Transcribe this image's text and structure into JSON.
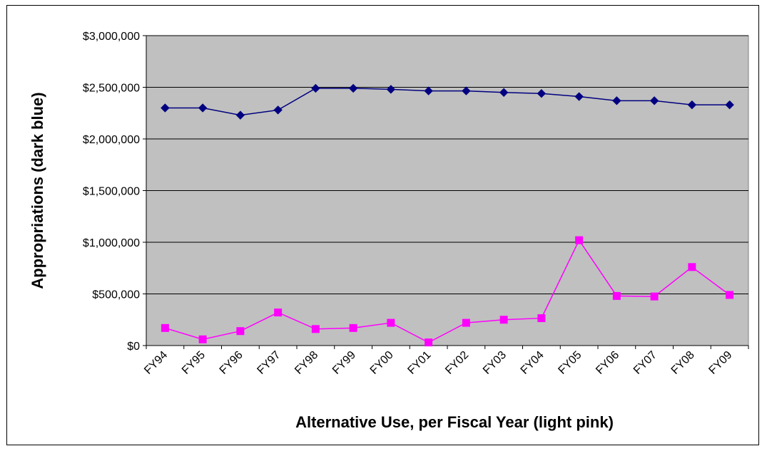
{
  "chart_data": {
    "type": "line",
    "title": "",
    "xlabel": "Alternative Use, per Fiscal Year (light pink)",
    "ylabel": "Appropriations (dark blue)",
    "ylim": [
      0,
      3000000
    ],
    "ytick_values": [
      0,
      500000,
      1000000,
      1500000,
      2000000,
      2500000,
      3000000
    ],
    "ytick_labels": [
      "$0",
      "$500,000",
      "$1,000,000",
      "$1,500,000",
      "$2,000,000",
      "$2,500,000",
      "$3,000,000"
    ],
    "categories": [
      "FY94",
      "FY95",
      "FY96",
      "FY97",
      "FY98",
      "FY99",
      "FY00",
      "FY01",
      "FY02",
      "FY03",
      "FY04",
      "FY05",
      "FY06",
      "FY07",
      "FY08",
      "FY09"
    ],
    "grid": true,
    "plot_background": "#c0c0c0",
    "series": [
      {
        "key": "appropriations",
        "color": "#000080",
        "marker": "diamond",
        "values": [
          2300000,
          2300000,
          2230000,
          2280000,
          2490000,
          2490000,
          2480000,
          2465000,
          2465000,
          2450000,
          2440000,
          2410000,
          2370000,
          2370000,
          2330000,
          2330000
        ]
      },
      {
        "key": "alternative_use",
        "color": "#ff00ff",
        "marker": "square",
        "values": [
          170000,
          60000,
          140000,
          320000,
          160000,
          170000,
          220000,
          30000,
          220000,
          250000,
          265000,
          1020000,
          480000,
          475000,
          760000,
          490000
        ]
      }
    ]
  }
}
